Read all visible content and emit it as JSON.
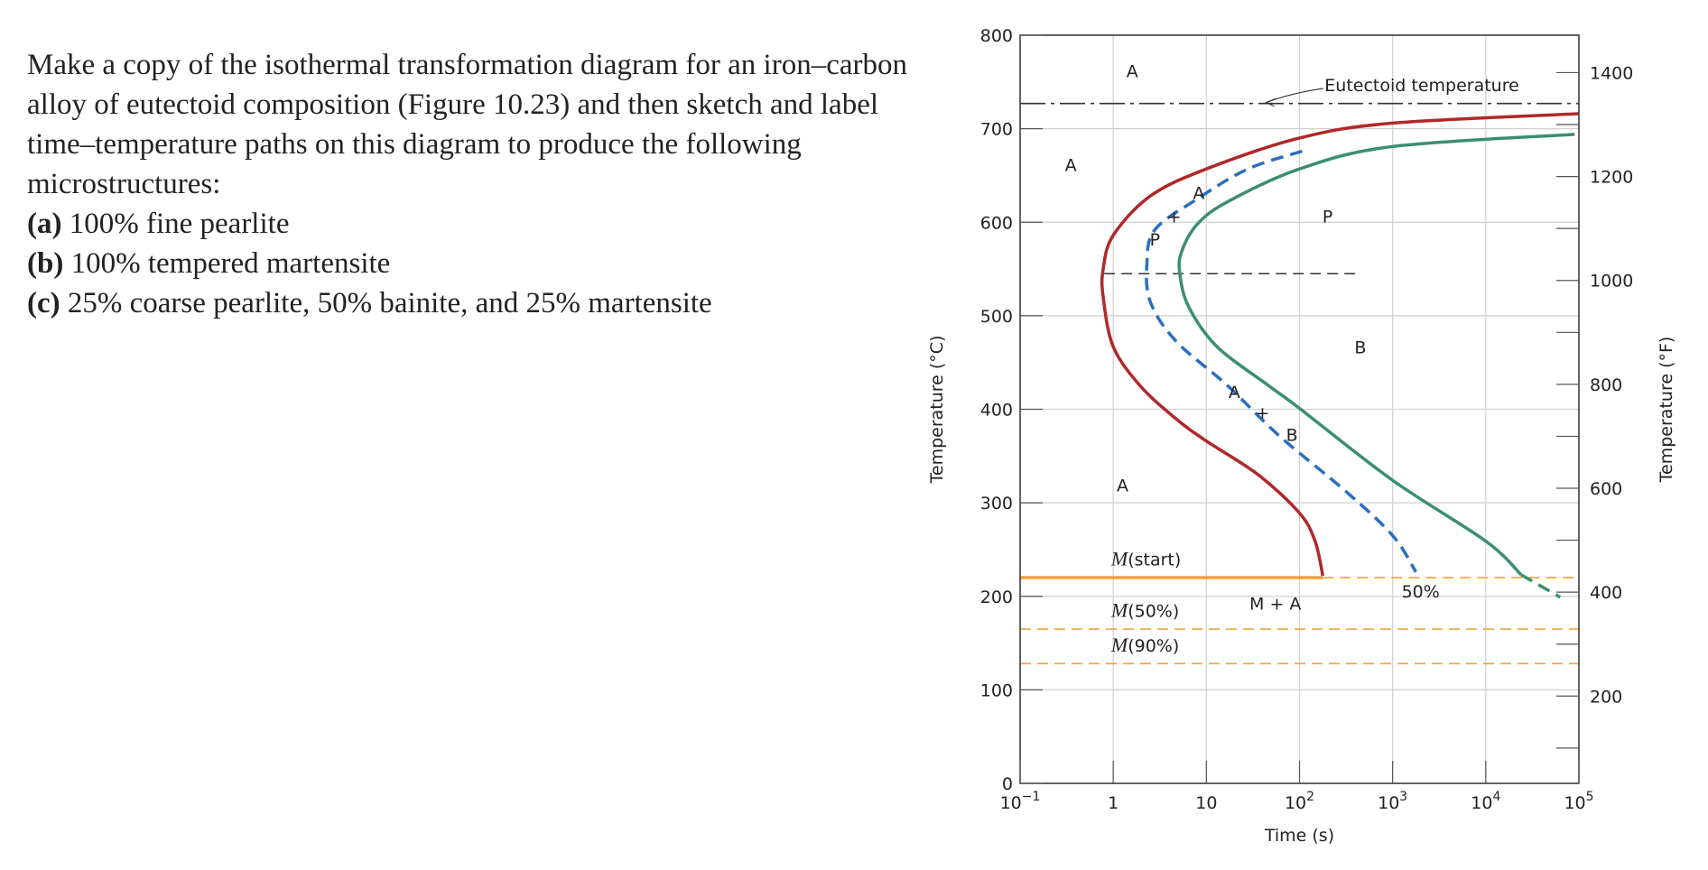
{
  "question": {
    "intro": "Make a copy of the isothermal transformation diagram for an iron–carbon alloy of eutectoid composition (Figure 10.23) and then sketch and label time–temperature paths on this diagram to produce the following microstructures:",
    "items": [
      {
        "label": "(a)",
        "text": " 100% fine pearlite"
      },
      {
        "label": "(b)",
        "text": " 100% tempered martensite"
      },
      {
        "label": "(c)",
        "text": " 25% coarse pearlite, 50% bainite, and 25% martensite"
      }
    ]
  },
  "chart_data": {
    "type": "line",
    "xlabel": "Time (s)",
    "ylabel": "Temperature (°C)",
    "y2label": "Temperature (°F)",
    "xscale": "log",
    "xlim": [
      0.1,
      100000
    ],
    "ylim": [
      0,
      800
    ],
    "y2lim_F": [
      32,
      1472
    ],
    "grid": true,
    "x_ticks": [
      {
        "value": 0.1,
        "base": "10",
        "exp": "−1"
      },
      {
        "value": 1,
        "base": "1",
        "exp": ""
      },
      {
        "value": 10,
        "base": "10",
        "exp": ""
      },
      {
        "value": 100,
        "base": "10",
        "exp": "2"
      },
      {
        "value": 1000,
        "base": "10",
        "exp": "3"
      },
      {
        "value": 10000,
        "base": "10",
        "exp": "4"
      },
      {
        "value": 100000,
        "base": "10",
        "exp": "5"
      }
    ],
    "y_ticks": [
      "0",
      "100",
      "200",
      "300",
      "400",
      "500",
      "600",
      "700",
      "800"
    ],
    "y2_ticks": [
      "200",
      "400",
      "600",
      "800",
      "1000",
      "1200",
      "1400"
    ],
    "colors": {
      "start": "#b0282a",
      "finish": "#3a8f6e",
      "fifty": "#2a6fbf",
      "martensite": "#f0a040",
      "grid": "#d0d0d0"
    },
    "series": [
      {
        "id": "start",
        "style": "solid",
        "points": [
          [
            100000,
            716
          ],
          [
            1000,
            706
          ],
          [
            100,
            690
          ],
          [
            10,
            657
          ],
          [
            2.5,
            628
          ],
          [
            1.0,
            586
          ],
          [
            0.78,
            550
          ],
          [
            0.78,
            520
          ],
          [
            1.0,
            467
          ],
          [
            1.95,
            425
          ],
          [
            4.7,
            390
          ],
          [
            10,
            366
          ],
          [
            36,
            330
          ],
          [
            100,
            289
          ],
          [
            147,
            259
          ],
          [
            178,
            222
          ]
        ]
      },
      {
        "id": "finish",
        "style": "solid",
        "points": [
          [
            90000,
            694
          ],
          [
            1000,
            681
          ],
          [
            100,
            657
          ],
          [
            17,
            622
          ],
          [
            8,
            598
          ],
          [
            5.4,
            568
          ],
          [
            5.2,
            544
          ],
          [
            6.5,
            509
          ],
          [
            13,
            467
          ],
          [
            47,
            425
          ],
          [
            100,
            401
          ],
          [
            1000,
            324
          ],
          [
            10000,
            259
          ],
          [
            24000,
            223
          ]
        ]
      },
      {
        "id": "finish-extension",
        "style": "dashed",
        "points": [
          [
            24000,
            223
          ],
          [
            63000,
            199
          ]
        ]
      },
      {
        "id": "fifty",
        "name": "50%",
        "style": "dashed",
        "points": [
          [
            107,
            676
          ],
          [
            28,
            657
          ],
          [
            8,
            625
          ],
          [
            2.8,
            592
          ],
          [
            2.3,
            556
          ],
          [
            2.5,
            515
          ],
          [
            4.7,
            473
          ],
          [
            17,
            425
          ],
          [
            60,
            372
          ],
          [
            316,
            312
          ],
          [
            1000,
            265
          ],
          [
            1780,
            226
          ]
        ]
      }
    ],
    "lines": [
      {
        "id": "eutectoid",
        "temp": 727,
        "from": 0.1,
        "to": 100000,
        "style": "dashdot",
        "label": "Eutectoid temperature"
      },
      {
        "id": "nose",
        "temp": 545,
        "from": 0.8,
        "to": 400,
        "style": "dashed"
      },
      {
        "id": "m-start",
        "temp": 220,
        "from": 0.1,
        "to": 178,
        "style": "solid",
        "label": "M",
        "label_suffix": "(start)"
      },
      {
        "id": "m-start-ext",
        "temp": 220,
        "from": 178,
        "to": 100000,
        "style": "dashed"
      },
      {
        "id": "m-50",
        "temp": 165,
        "from": 0.1,
        "to": 100000,
        "style": "dashed",
        "label": "M",
        "label_suffix": "(50%)"
      },
      {
        "id": "m-90",
        "temp": 128,
        "from": 0.1,
        "to": 100000,
        "style": "dashed",
        "label": "M",
        "label_suffix": "(90%)"
      }
    ],
    "annotations": [
      {
        "text": "A",
        "t": 1.6,
        "T": 755
      },
      {
        "text": "A",
        "t": 0.35,
        "T": 655
      },
      {
        "text": "P",
        "t": 200,
        "T": 600
      },
      {
        "text": "P",
        "t": 2.8,
        "T": 575
      },
      {
        "text": "+",
        "t": 4.5,
        "T": 600
      },
      {
        "text": "A",
        "t": 8.3,
        "T": 625
      },
      {
        "text": "B",
        "t": 450,
        "T": 460
      },
      {
        "text": "A",
        "t": 20,
        "T": 412
      },
      {
        "text": "+",
        "t": 40,
        "T": 390
      },
      {
        "text": "B",
        "t": 83,
        "T": 366
      },
      {
        "text": "A",
        "t": 1.26,
        "T": 312
      },
      {
        "text": "M + A",
        "t": 55,
        "T": 186
      },
      {
        "text": "50%",
        "t": 2000,
        "T": 199
      }
    ]
  }
}
